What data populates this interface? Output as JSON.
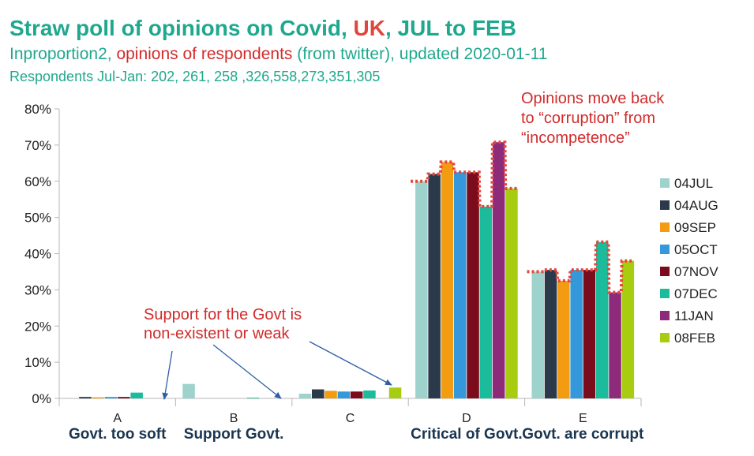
{
  "header": {
    "title_main": "Straw poll of opinions on Covid, ",
    "title_uk": "UK",
    "title_tail": ", JUL to FEB",
    "subtitle_a": "Inproportion2, ",
    "subtitle_b": "opinions of respondents",
    "subtitle_c": " (from twitter), updated 2020-01-11",
    "subtitle2": "Respondents Jul-Jan: 202, 261, 258 ,326,558,273,351,305"
  },
  "annotations": {
    "support": [
      "Support for the Govt is",
      "non-existent  or weak"
    ],
    "opinions": [
      "Opinions move back",
      "to “corruption” from",
      "“incompetence”"
    ]
  },
  "colors": {
    "axis": "#b7b7b7",
    "annotation": "#d22b2b",
    "arrow": "#2d5fa8",
    "trend": "#e8453c"
  },
  "chart_data": {
    "type": "bar",
    "categories": [
      "A",
      "B",
      "C",
      "D",
      "E"
    ],
    "category_descriptions": [
      "Govt. too soft",
      "Support Govt.",
      "",
      "Critical of Govt.",
      "Govt. are corrupt"
    ],
    "ylim": [
      0,
      80
    ],
    "yticks": [
      "0%",
      "10%",
      "20%",
      "30%",
      "40%",
      "50%",
      "60%",
      "70%",
      "80%"
    ],
    "legend_position": "right",
    "grid": false,
    "series": [
      {
        "name": "04JUL",
        "color": "#9dd3cc",
        "values": [
          0,
          4,
          1.3,
          60,
          35
        ]
      },
      {
        "name": "04AUG",
        "color": "#2b3a4a",
        "values": [
          0.4,
          0,
          2.5,
          62,
          35.5
        ]
      },
      {
        "name": "09SEP",
        "color": "#f39c12",
        "values": [
          0.3,
          0,
          2.1,
          65.3,
          32.5
        ]
      },
      {
        "name": "05OCT",
        "color": "#3498db",
        "values": [
          0.4,
          0,
          1.9,
          62.5,
          35.5
        ]
      },
      {
        "name": "07NOV",
        "color": "#7b0c1c",
        "values": [
          0.4,
          0,
          1.9,
          62.5,
          35.5
        ]
      },
      {
        "name": "07DEC",
        "color": "#1abc9c",
        "values": [
          1.6,
          0.2,
          2.2,
          53,
          43.2
        ]
      },
      {
        "name": "11JAN",
        "color": "#8e2a7a",
        "values": [
          0,
          0,
          0,
          70.8,
          29.3
        ]
      },
      {
        "name": "08FEB",
        "color": "#a8cc10",
        "values": [
          0,
          0,
          3,
          58,
          38
        ]
      }
    ]
  }
}
